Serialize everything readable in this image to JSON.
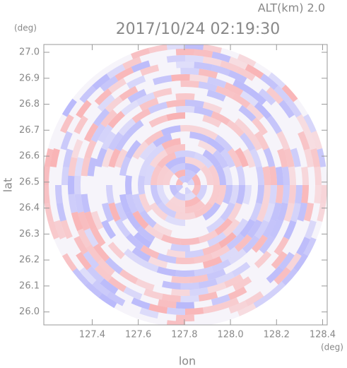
{
  "chart_data": {
    "type": "radar-ppi",
    "title": "2017/10/24 02:19:30",
    "subtitle": "ALT(km) 2.0",
    "x_label": "lon",
    "y_label": "lat",
    "x_unit": "(deg)",
    "y_unit": "(deg)",
    "xlim": [
      127.19,
      128.42
    ],
    "ylim": [
      25.95,
      27.03
    ],
    "xticks": [
      127.4,
      127.6,
      127.8,
      {
        "value": 128,
        "label": "128.0"
      },
      128.2,
      128.4
    ],
    "yticks": [
      {
        "value": 26,
        "label": "26.0"
      },
      26.1,
      26.2,
      26.3,
      26.4,
      26.5,
      26.6,
      26.7,
      26.8,
      26.9,
      {
        "value": 27,
        "label": "27.0"
      }
    ]
  }
}
